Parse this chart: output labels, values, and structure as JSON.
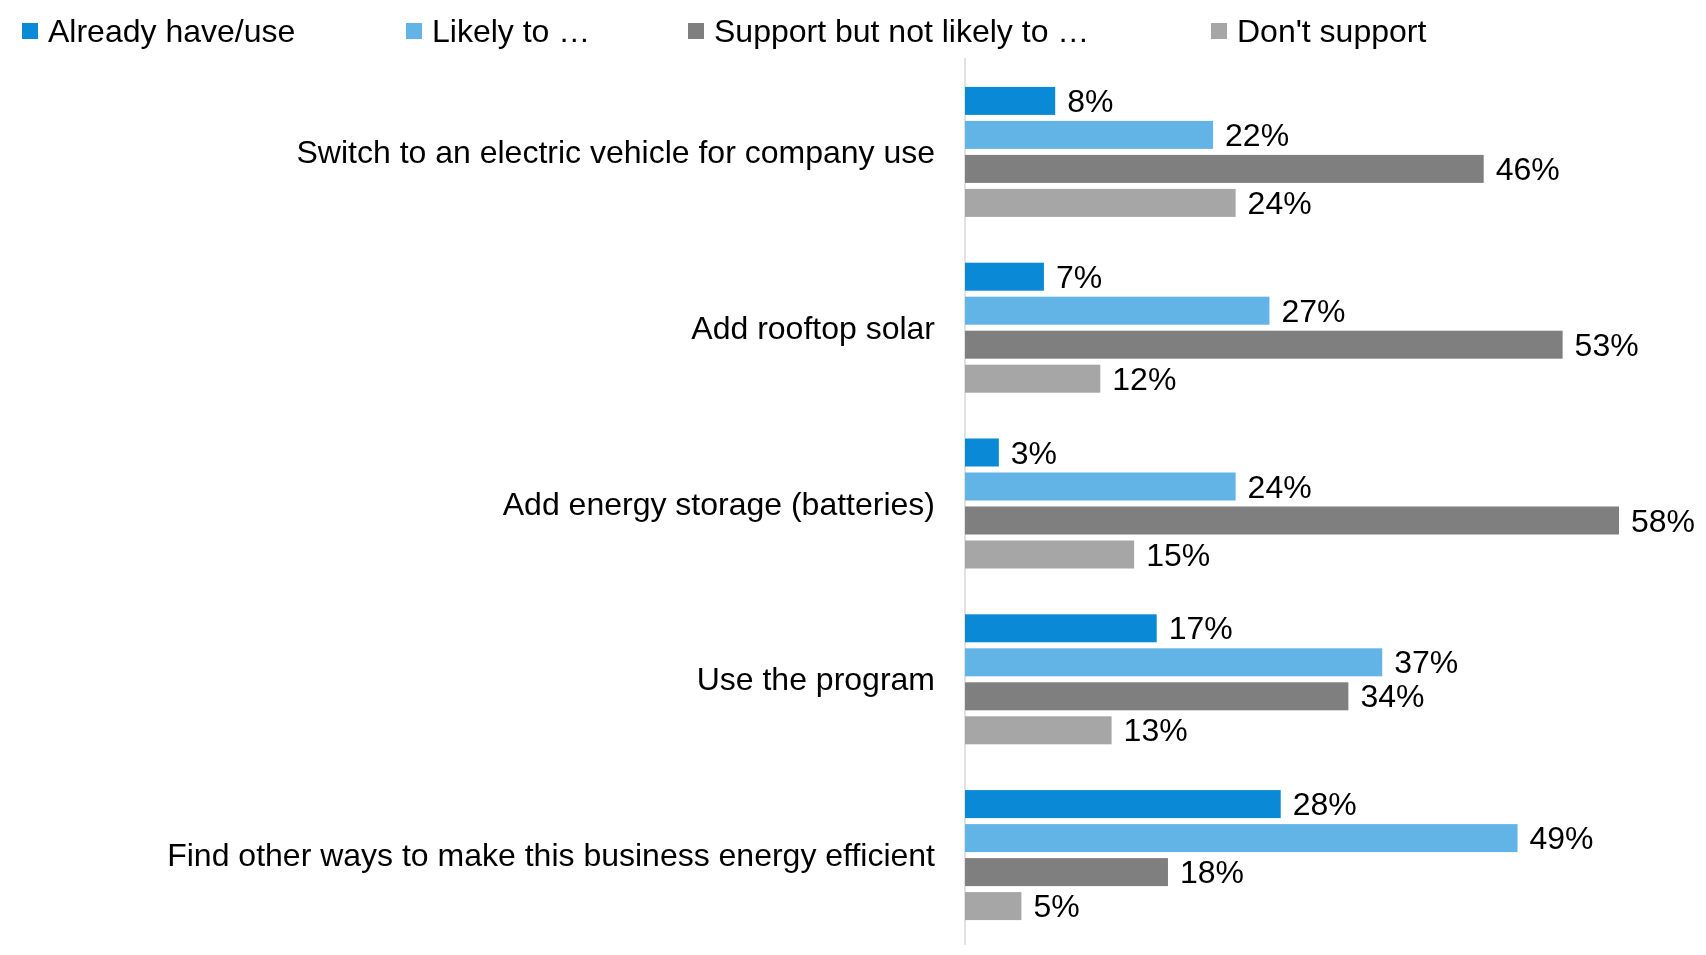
{
  "chart_data": {
    "type": "bar",
    "orientation": "horizontal",
    "legend": "top",
    "categories": [
      "Switch to an electric vehicle for company use",
      "Add rooftop solar",
      "Add energy storage (batteries)",
      "Use the program",
      "Find other ways to make this business energy efficient"
    ],
    "series": [
      {
        "name": "Already have/use",
        "color": "#0a8ad6",
        "values": [
          8,
          7,
          3,
          17,
          28
        ],
        "value_labels": [
          "8%",
          "7%",
          "3%",
          "17%",
          "28%"
        ]
      },
      {
        "name": "Likely to …",
        "color": "#62b4e6",
        "values": [
          22,
          27,
          24,
          37,
          49
        ],
        "value_labels": [
          "22%",
          "27%",
          "24%",
          "37%",
          "49%"
        ]
      },
      {
        "name": "Support but not likely to …",
        "color": "#7f7f7f",
        "values": [
          46,
          53,
          58,
          34,
          18
        ],
        "value_labels": [
          "46%",
          "53%",
          "58%",
          "34%",
          "18%"
        ]
      },
      {
        "name": "Don't support",
        "color": "#a6a6a6",
        "values": [
          24,
          12,
          15,
          13,
          5
        ],
        "value_labels": [
          "24%",
          "12%",
          "15%",
          "13%",
          "5%"
        ]
      }
    ]
  }
}
